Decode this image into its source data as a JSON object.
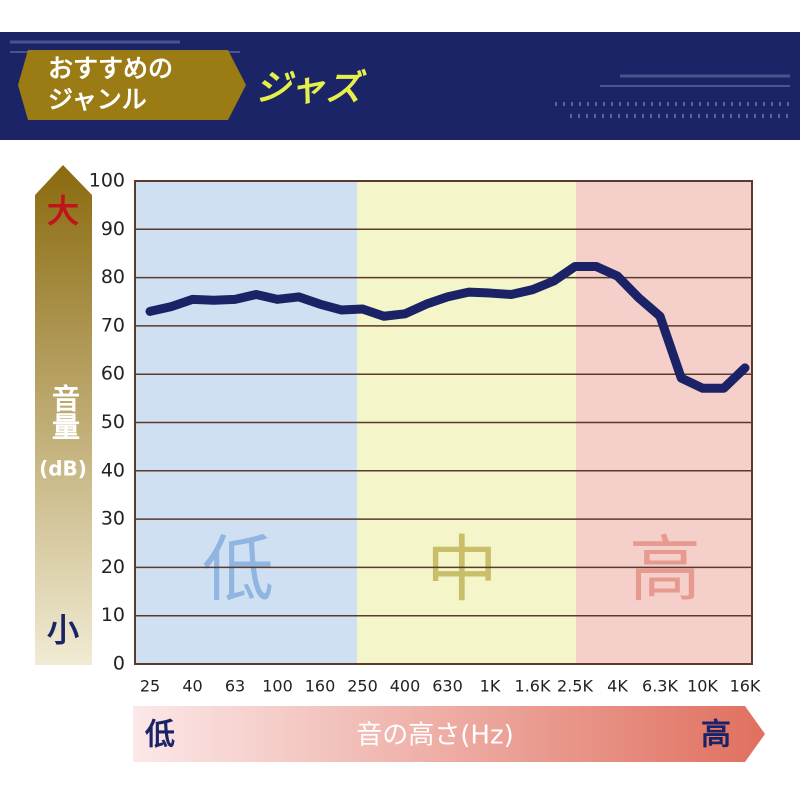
{
  "header": {
    "badge": [
      "おすすめの",
      "ジャンル"
    ],
    "genre": "ジャズ"
  },
  "chart_data": {
    "type": "line",
    "categories": [
      "25",
      null,
      "40",
      null,
      "63",
      null,
      "100",
      null,
      "160",
      null,
      "250",
      null,
      "400",
      null,
      "630",
      null,
      "1K",
      null,
      "1.6K",
      null,
      "2.5K",
      null,
      "4K",
      null,
      "6.3K",
      null,
      "10K",
      null,
      "16K"
    ],
    "values": [
      73,
      74,
      75.5,
      75.3,
      75.5,
      76.5,
      75.5,
      76,
      74.5,
      73.3,
      73.5,
      72,
      72.5,
      74.5,
      76,
      77,
      76.8,
      76.5,
      77.5,
      79.3,
      82.3,
      82.3,
      80.3,
      75.8,
      72,
      59.2,
      57.1,
      57.1,
      61.3
    ],
    "color": "#1c2266",
    "ylim": [
      0,
      100
    ],
    "yticks": [
      0,
      10,
      20,
      30,
      40,
      50,
      60,
      70,
      80,
      90,
      100
    ],
    "grid": true,
    "ylabel": [
      "音量",
      "(dB)"
    ],
    "y_high": "大",
    "y_low": "小",
    "xlabel": "音の高さ(Hz)",
    "x_low": "低",
    "x_high": "高",
    "regions": [
      {
        "label": "低",
        "color": "#cfe0f3",
        "text_color": "#8fb5e0"
      },
      {
        "label": "中",
        "color": "#f4f5c8",
        "text_color": "#c9bf6a"
      },
      {
        "label": "高",
        "color": "#f5d0cb",
        "text_color": "#e69a90"
      }
    ]
  }
}
